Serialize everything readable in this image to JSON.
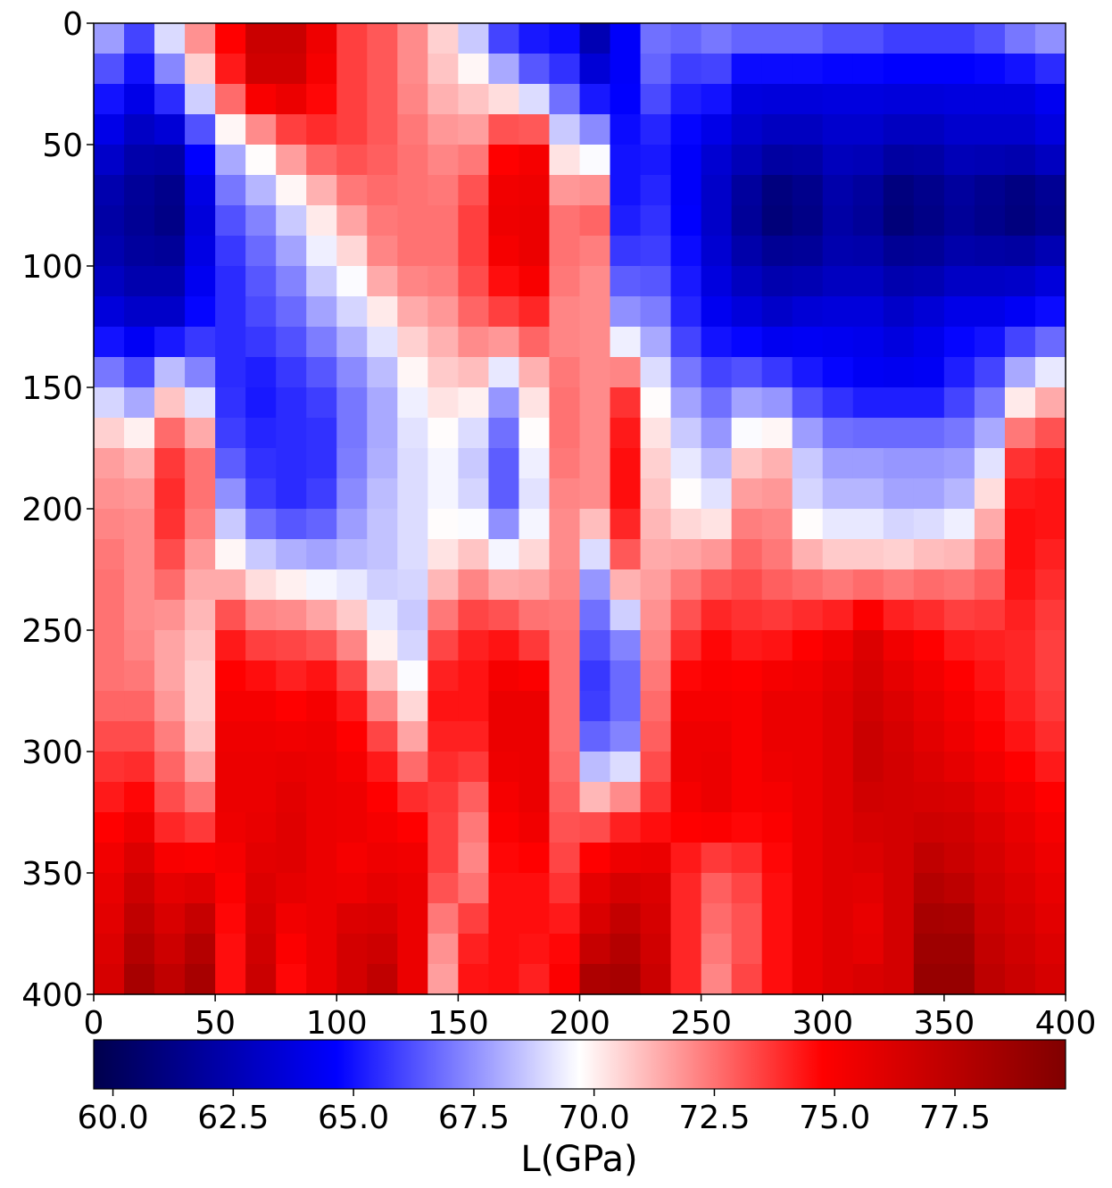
{
  "chart_data": {
    "type": "heatmap",
    "title": "",
    "xlabel": "",
    "ylabel": "",
    "xlim": [
      0,
      400
    ],
    "ylim": [
      400,
      0
    ],
    "x_ticks": [
      "0",
      "50",
      "100",
      "150",
      "200",
      "250",
      "300",
      "350",
      "400"
    ],
    "y_ticks": [
      "0",
      "50",
      "100",
      "150",
      "200",
      "250",
      "300",
      "350",
      "400"
    ],
    "grid": false,
    "colormap": "seismic",
    "colormap_stops": [
      "#00004c",
      "#0000ff",
      "#ffffff",
      "#ff0000",
      "#800000"
    ],
    "colorbar": {
      "label": "L(GPa)",
      "orientation": "horizontal",
      "placement": "bottom",
      "range": [
        59.6,
        79.8
      ],
      "ticks": [
        "60.0",
        "62.5",
        "65.0",
        "67.5",
        "70.0",
        "72.5",
        "75.0",
        "77.5"
      ]
    },
    "grid_size": [
      32,
      32
    ],
    "cell_size": 12.5,
    "column_centers": [
      6.25,
      18.75,
      31.25,
      43.75,
      56.25,
      68.75,
      81.25,
      93.75,
      106.25,
      118.75,
      131.25,
      143.75,
      156.25,
      168.75,
      181.25,
      193.75,
      206.25,
      218.75,
      231.25,
      243.75,
      256.25,
      268.75,
      281.25,
      293.75,
      306.25,
      318.75,
      331.25,
      343.75,
      356.25,
      368.75,
      381.25,
      393.75
    ],
    "row_anchors": [
      {
        "y": 0,
        "values": [
          68.5,
          66.5,
          69.8,
          72.5,
          75.0,
          77.0,
          77.0,
          75.5,
          73.5,
          73.0,
          72.0,
          70.5,
          68.0,
          65.0,
          64.5,
          64.5,
          62.0,
          64.5,
          67.0,
          67.0,
          67.5,
          67.5,
          67.5,
          67.5,
          67.0,
          67.0,
          66.5,
          66.5,
          66.5,
          67.0,
          68.0,
          68.5
        ]
      },
      {
        "y": 25,
        "values": [
          65.5,
          64.5,
          66.5,
          70.0,
          74.0,
          76.5,
          76.5,
          75.0,
          73.5,
          73.0,
          72.0,
          71.0,
          70.5,
          69.0,
          67.0,
          66.0,
          64.0,
          64.5,
          66.5,
          65.5,
          65.5,
          64.0,
          64.0,
          64.0,
          64.0,
          64.0,
          64.0,
          64.0,
          64.0,
          64.0,
          64.0,
          64.5
        ]
      },
      {
        "y": 50,
        "values": [
          63.5,
          62.5,
          62.5,
          65.0,
          68.5,
          70.5,
          72.5,
          73.5,
          73.5,
          73.0,
          72.5,
          72.0,
          72.0,
          74.5,
          75.0,
          69.5,
          68.5,
          65.0,
          65.0,
          64.5,
          63.5,
          63.0,
          62.5,
          62.5,
          63.0,
          63.0,
          62.5,
          62.5,
          63.0,
          63.0,
          63.0,
          63.5
        ]
      },
      {
        "y": 75,
        "values": [
          62.0,
          61.5,
          61.0,
          63.5,
          66.5,
          67.5,
          69.0,
          70.5,
          72.0,
          72.5,
          72.5,
          72.5,
          73.5,
          75.5,
          75.5,
          72.5,
          73.0,
          65.0,
          65.5,
          64.5,
          63.0,
          61.5,
          60.5,
          61.0,
          62.0,
          61.5,
          60.5,
          61.0,
          61.5,
          61.0,
          60.5,
          61.0
        ]
      },
      {
        "y": 100,
        "values": [
          62.5,
          62.0,
          62.0,
          64.0,
          65.5,
          66.5,
          67.5,
          69.0,
          70.0,
          72.0,
          72.5,
          72.5,
          73.5,
          75.0,
          75.5,
          72.5,
          72.0,
          66.0,
          66.0,
          65.0,
          63.5,
          62.5,
          62.0,
          62.0,
          62.5,
          62.5,
          62.0,
          62.0,
          62.5,
          62.5,
          62.5,
          63.0
        ]
      },
      {
        "y": 125,
        "values": [
          64.0,
          63.5,
          63.5,
          65.0,
          65.5,
          66.0,
          66.5,
          67.5,
          68.5,
          69.5,
          71.0,
          71.5,
          72.5,
          73.0,
          73.5,
          72.0,
          72.0,
          68.0,
          67.5,
          65.5,
          64.5,
          64.0,
          63.5,
          64.0,
          64.0,
          64.0,
          63.5,
          64.0,
          64.5,
          64.5,
          65.0,
          65.5
        ]
      },
      {
        "y": 150,
        "values": [
          68.0,
          67.0,
          70.0,
          68.0,
          65.5,
          65.0,
          65.5,
          66.0,
          67.0,
          68.0,
          69.5,
          70.5,
          70.5,
          68.0,
          70.5,
          72.5,
          72.0,
          73.5,
          69.5,
          67.5,
          66.5,
          67.0,
          66.5,
          65.5,
          65.0,
          64.5,
          64.5,
          64.5,
          65.5,
          66.5,
          69.0,
          70.5
        ]
      },
      {
        "y": 175,
        "values": [
          71.5,
          71.0,
          73.5,
          72.5,
          66.0,
          65.5,
          65.5,
          65.5,
          67.0,
          68.0,
          69.0,
          69.5,
          68.5,
          66.5,
          69.5,
          72.5,
          72.0,
          74.5,
          70.5,
          69.0,
          68.0,
          70.5,
          71.0,
          68.5,
          67.5,
          67.5,
          67.5,
          67.5,
          67.5,
          68.5,
          73.5,
          74.0
        ]
      },
      {
        "y": 200,
        "values": [
          72.0,
          72.0,
          74.0,
          72.5,
          68.0,
          66.0,
          65.5,
          66.0,
          67.5,
          68.5,
          69.0,
          69.5,
          69.0,
          66.5,
          69.0,
          72.0,
          72.0,
          74.5,
          71.0,
          70.0,
          69.5,
          72.0,
          72.0,
          69.0,
          68.5,
          68.5,
          68.0,
          68.0,
          68.5,
          71.0,
          74.5,
          74.5
        ]
      },
      {
        "y": 225,
        "values": [
          72.5,
          72.0,
          73.0,
          71.5,
          70.5,
          69.5,
          69.0,
          68.5,
          68.5,
          68.5,
          69.0,
          70.5,
          71.5,
          70.5,
          71.0,
          72.0,
          68.0,
          72.5,
          71.5,
          72.0,
          72.5,
          73.0,
          72.5,
          72.0,
          71.5,
          71.5,
          71.5,
          72.0,
          72.0,
          72.5,
          74.5,
          74.0
        ]
      },
      {
        "y": 250,
        "values": [
          72.5,
          72.0,
          71.5,
          71.0,
          74.0,
          73.0,
          73.0,
          72.5,
          71.5,
          69.5,
          68.5,
          73.0,
          74.0,
          74.0,
          73.0,
          72.5,
          66.5,
          67.5,
          72.0,
          73.5,
          74.5,
          74.0,
          74.0,
          74.5,
          75.0,
          76.0,
          75.0,
          74.5,
          74.0,
          74.0,
          74.0,
          73.5
        ]
      },
      {
        "y": 275,
        "values": [
          72.5,
          72.5,
          71.5,
          70.5,
          75.0,
          75.0,
          74.5,
          75.0,
          74.0,
          71.5,
          70.0,
          74.5,
          74.5,
          75.5,
          75.5,
          72.5,
          65.5,
          66.5,
          72.5,
          75.0,
          75.0,
          75.0,
          75.5,
          75.5,
          76.0,
          76.5,
          76.0,
          75.5,
          75.0,
          74.5,
          74.0,
          73.5
        ]
      },
      {
        "y": 300,
        "values": [
          73.5,
          73.5,
          72.5,
          71.0,
          75.5,
          75.5,
          75.5,
          75.5,
          75.0,
          74.0,
          72.0,
          74.0,
          74.0,
          75.5,
          75.5,
          72.5,
          67.0,
          67.5,
          73.0,
          75.5,
          75.5,
          75.0,
          75.5,
          75.5,
          76.0,
          77.0,
          76.5,
          76.0,
          75.5,
          75.0,
          74.5,
          74.0
        ]
      },
      {
        "y": 325,
        "values": [
          74.5,
          75.0,
          73.5,
          73.0,
          75.5,
          75.5,
          76.0,
          75.5,
          75.5,
          75.0,
          74.5,
          73.5,
          72.5,
          75.0,
          75.5,
          73.0,
          72.5,
          73.5,
          74.0,
          75.0,
          75.5,
          75.0,
          75.0,
          75.5,
          76.0,
          76.5,
          76.5,
          76.5,
          76.5,
          76.0,
          75.5,
          75.0
        ]
      },
      {
        "y": 350,
        "values": [
          75.5,
          76.5,
          75.5,
          75.5,
          75.0,
          76.0,
          76.0,
          75.5,
          75.0,
          75.5,
          75.5,
          73.5,
          72.0,
          74.5,
          74.5,
          73.5,
          75.5,
          76.0,
          76.0,
          74.0,
          73.0,
          73.5,
          74.5,
          75.5,
          76.0,
          76.0,
          76.5,
          77.5,
          77.0,
          76.5,
          76.0,
          75.5
        ]
      },
      {
        "y": 375,
        "values": [
          76.0,
          77.5,
          76.5,
          77.5,
          74.5,
          76.5,
          75.0,
          75.5,
          76.5,
          76.5,
          75.5,
          72.0,
          74.0,
          74.5,
          74.5,
          74.5,
          76.5,
          77.5,
          76.5,
          74.0,
          72.5,
          73.0,
          74.5,
          75.5,
          76.0,
          75.5,
          76.5,
          78.5,
          78.5,
          77.0,
          76.5,
          76.0
        ]
      },
      {
        "y": 400,
        "values": [
          76.5,
          78.5,
          77.5,
          78.5,
          74.5,
          77.0,
          74.5,
          75.5,
          76.5,
          77.5,
          75.5,
          71.5,
          74.5,
          74.5,
          74.0,
          75.0,
          78.5,
          78.5,
          77.0,
          74.0,
          72.0,
          73.5,
          74.5,
          75.5,
          76.0,
          76.5,
          76.5,
          79.0,
          79.0,
          77.5,
          77.0,
          76.5
        ]
      }
    ]
  }
}
